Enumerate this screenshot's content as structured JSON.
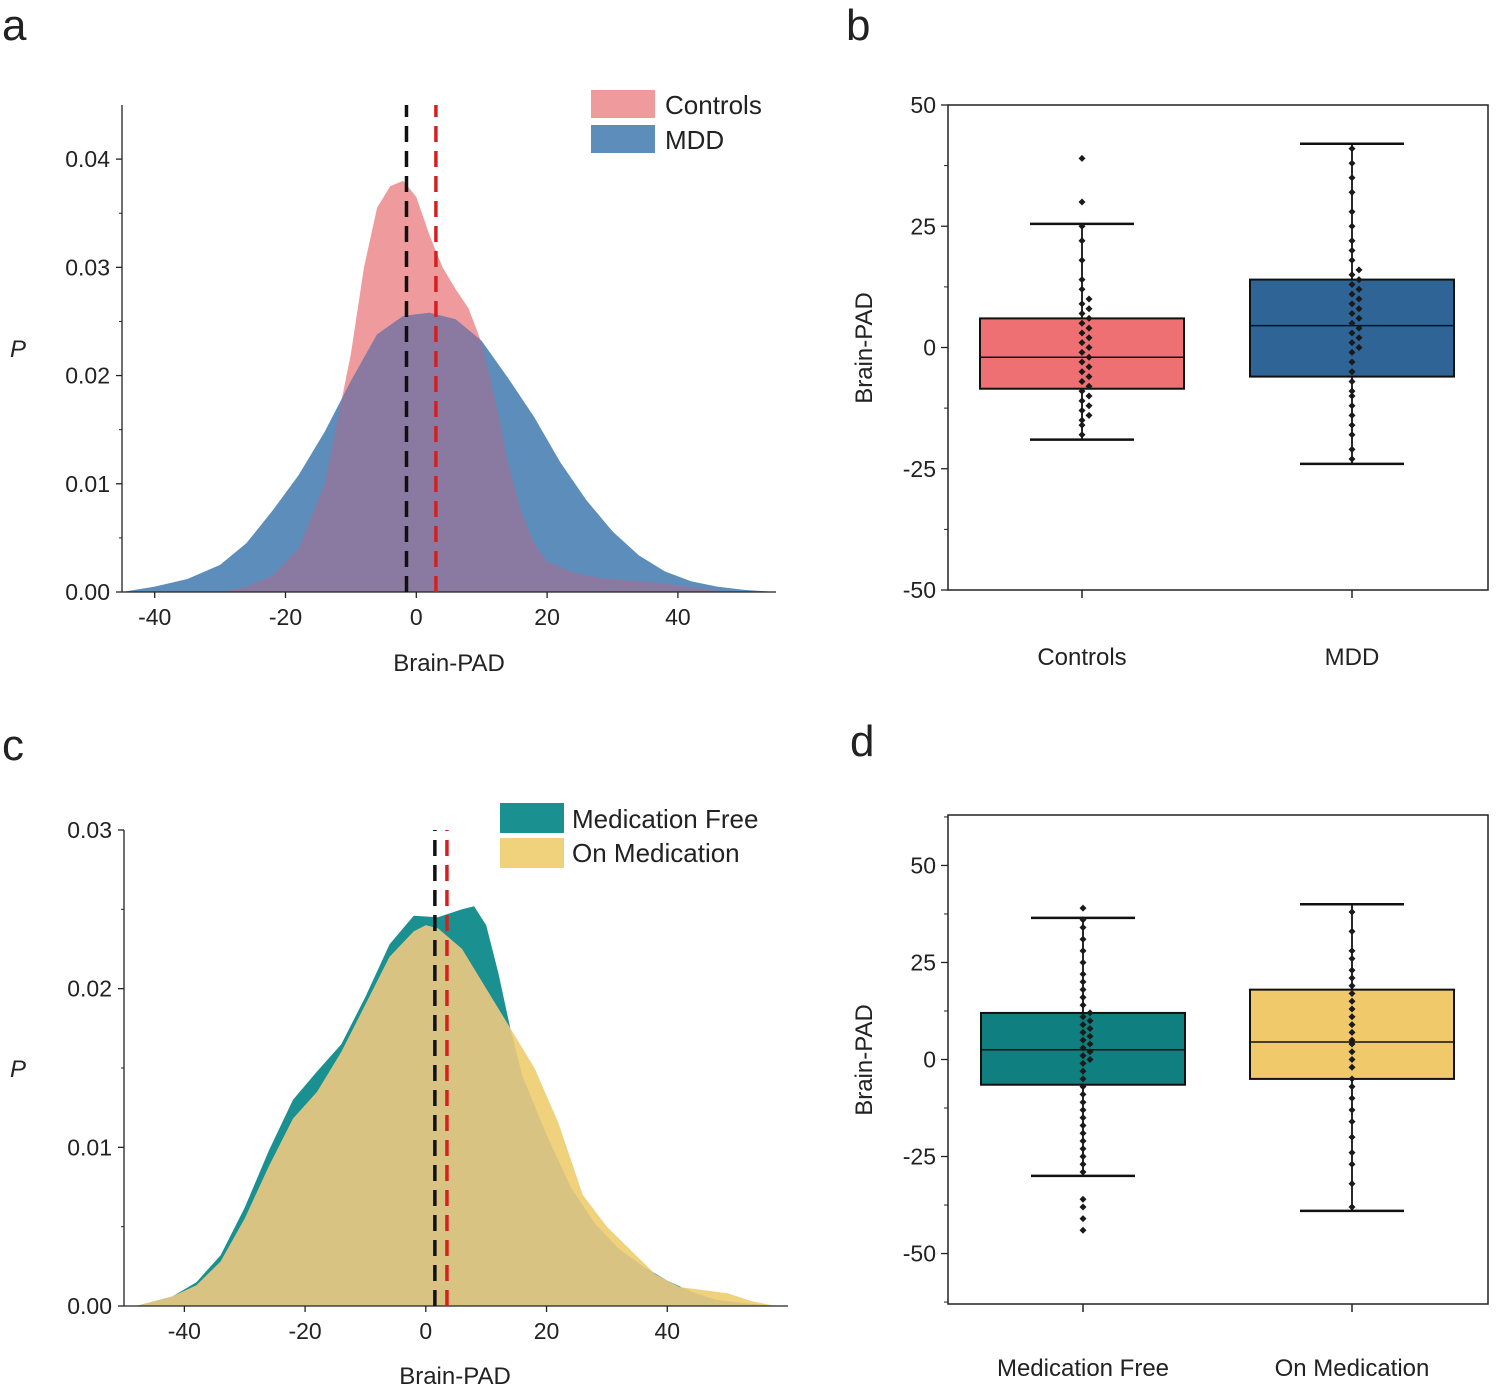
{
  "colors": {
    "controls": "#ef9a9c",
    "mdd": "#5d8dbb",
    "overlap_ab": "#8a7aa2",
    "medfree": "#1a9190",
    "onmed": "#f0d17c",
    "overlap_cd": "#d9c383",
    "box_controls": "#ee7073",
    "box_mdd": "#2f6497",
    "box_medfree": "#0f807f",
    "box_onmed": "#f0c96b",
    "mean_black": "#111111",
    "mean_red": "#d62020",
    "points": "#1a1a1a"
  },
  "chart_data": [
    {
      "id": "a",
      "type": "area",
      "panel_label": "a",
      "xlabel": "Brain-PAD",
      "ylabel": "P",
      "xlim": [
        -45,
        55
      ],
      "ylim": [
        0,
        0.045
      ],
      "xticks": [
        -40,
        -20,
        0,
        20,
        40
      ],
      "xtick_labels": [
        "-40",
        "-20",
        "0",
        "20",
        "40"
      ],
      "yticks": [
        0,
        0.01,
        0.02,
        0.03,
        0.04
      ],
      "ytick_labels": [
        "0.00",
        "0.01",
        "0.02",
        "0.03",
        "0.04"
      ],
      "legend": [
        {
          "label": "Controls",
          "color": "controls"
        },
        {
          "label": "MDD",
          "color": "mdd"
        }
      ],
      "legend_position": "top-right",
      "mean_lines": [
        {
          "group": "Controls",
          "x": -1.5,
          "color": "mean_black"
        },
        {
          "group": "MDD",
          "x": 3.0,
          "color": "mean_red"
        }
      ],
      "series": [
        {
          "name": "Controls",
          "color": "controls",
          "x": [
            -30,
            -26,
            -22,
            -18,
            -14,
            -10,
            -8,
            -6,
            -4,
            -2,
            0,
            2,
            4,
            6,
            8,
            10,
            12,
            14,
            16,
            18,
            20,
            24,
            28,
            32,
            36,
            40,
            44,
            48
          ],
          "y": [
            0.0,
            0.0005,
            0.0015,
            0.004,
            0.01,
            0.022,
            0.03,
            0.0355,
            0.0375,
            0.038,
            0.0365,
            0.033,
            0.03,
            0.028,
            0.0262,
            0.023,
            0.018,
            0.012,
            0.0075,
            0.0045,
            0.0028,
            0.0018,
            0.0013,
            0.0011,
            0.0009,
            0.0006,
            0.0003,
            0.0
          ]
        },
        {
          "name": "MDD",
          "color": "mdd",
          "x": [
            -45,
            -40,
            -35,
            -30,
            -26,
            -22,
            -18,
            -14,
            -10,
            -6,
            -2,
            2,
            6,
            10,
            14,
            18,
            22,
            26,
            30,
            34,
            38,
            42,
            46,
            50,
            55
          ],
          "y": [
            0.0,
            0.0005,
            0.0012,
            0.0025,
            0.0045,
            0.0075,
            0.0108,
            0.0148,
            0.0195,
            0.0238,
            0.0255,
            0.0258,
            0.0252,
            0.0232,
            0.0198,
            0.0162,
            0.012,
            0.0085,
            0.0056,
            0.0034,
            0.0019,
            0.001,
            0.0005,
            0.0002,
            0.0
          ]
        }
      ]
    },
    {
      "id": "b",
      "type": "box",
      "panel_label": "b",
      "ylabel": "Brain-PAD",
      "ylim": [
        -50,
        50
      ],
      "yticks": [
        -50,
        -25,
        0,
        25,
        50
      ],
      "ytick_labels": [
        "-50",
        "-25",
        "0",
        "25",
        "50"
      ],
      "categories": [
        "Controls",
        "MDD"
      ],
      "boxes": [
        {
          "name": "Controls",
          "color": "box_controls",
          "whisker_low": -19,
          "q1": -8.5,
          "median": -2,
          "q3": 6,
          "whisker_high": 25.5,
          "outliers": [
            30,
            39
          ],
          "points": [
            -18,
            -16,
            -15,
            -14,
            -13,
            -12,
            -11,
            -10,
            -9,
            -8,
            -7,
            -6,
            -5,
            -4,
            -3,
            -2,
            -1,
            0,
            1,
            2,
            3,
            4,
            5,
            6,
            7,
            8,
            9,
            10,
            12,
            14,
            18,
            22,
            25
          ]
        },
        {
          "name": "MDD",
          "color": "box_mdd",
          "whisker_low": -24,
          "q1": -6,
          "median": 4.5,
          "q3": 14,
          "whisker_high": 42,
          "outliers": [],
          "points": [
            -23,
            -21,
            -18,
            -16,
            -14,
            -12,
            -10,
            -9,
            -7,
            -5,
            -3,
            -1,
            0,
            1,
            2,
            3,
            4,
            5,
            6,
            7,
            8,
            9,
            10,
            11,
            12,
            13,
            14,
            15,
            16,
            18,
            20,
            22,
            25,
            28,
            32,
            35,
            38,
            41
          ]
        }
      ]
    },
    {
      "id": "c",
      "type": "area",
      "panel_label": "c",
      "xlabel": "Brain-PAD",
      "ylabel": "P",
      "xlim": [
        -50,
        60
      ],
      "ylim": [
        0,
        0.03
      ],
      "xticks": [
        -40,
        -20,
        0,
        20,
        40
      ],
      "xtick_labels": [
        "-40",
        "-20",
        "0",
        "20",
        "40"
      ],
      "yticks": [
        0,
        0.01,
        0.02,
        0.03
      ],
      "ytick_labels": [
        "0.00",
        "0.01",
        "0.02",
        "0.03"
      ],
      "legend": [
        {
          "label": "Medication Free",
          "color": "medfree"
        },
        {
          "label": "On Medication",
          "color": "onmed"
        }
      ],
      "legend_position": "top-right",
      "mean_lines": [
        {
          "group": "Medication Free",
          "x": 1.5,
          "color": "mean_black"
        },
        {
          "group": "On Medication",
          "x": 3.5,
          "color": "mean_red"
        }
      ],
      "series": [
        {
          "name": "Medication Free",
          "color": "medfree",
          "x": [
            -48,
            -42,
            -38,
            -34,
            -30,
            -26,
            -22,
            -18,
            -14,
            -10,
            -6,
            -2,
            2,
            6,
            8,
            10,
            12,
            14,
            16,
            20,
            24,
            28,
            32,
            36,
            40,
            44,
            48,
            52,
            58
          ],
          "y": [
            0.0,
            0.0006,
            0.0015,
            0.0032,
            0.0062,
            0.0098,
            0.013,
            0.0148,
            0.0165,
            0.0195,
            0.0228,
            0.0246,
            0.0245,
            0.025,
            0.0252,
            0.024,
            0.021,
            0.0175,
            0.0145,
            0.0108,
            0.0075,
            0.0052,
            0.0036,
            0.0025,
            0.0016,
            0.0009,
            0.0004,
            0.0002,
            0.0
          ]
        },
        {
          "name": "On Medication",
          "color": "onmed",
          "x": [
            -48,
            -42,
            -38,
            -34,
            -30,
            -26,
            -22,
            -18,
            -14,
            -10,
            -6,
            -2,
            0,
            2,
            6,
            10,
            14,
            18,
            22,
            26,
            30,
            34,
            38,
            42,
            46,
            50,
            54,
            58
          ],
          "y": [
            0.0,
            0.0006,
            0.0013,
            0.0028,
            0.0055,
            0.0088,
            0.0118,
            0.0135,
            0.016,
            0.019,
            0.022,
            0.0236,
            0.024,
            0.0238,
            0.0225,
            0.02,
            0.0175,
            0.015,
            0.0115,
            0.007,
            0.005,
            0.0035,
            0.002,
            0.0012,
            0.001,
            0.0008,
            0.0003,
            0.0
          ]
        }
      ]
    },
    {
      "id": "d",
      "type": "box",
      "panel_label": "d",
      "ylabel": "Brain-PAD",
      "ylim": [
        -63,
        63
      ],
      "yticks": [
        -50,
        -25,
        0,
        25,
        50
      ],
      "ytick_labels": [
        "-50",
        "-25",
        "0",
        "25",
        "50"
      ],
      "categories": [
        "Medication Free",
        "On Medication"
      ],
      "boxes": [
        {
          "name": "Medication Free",
          "color": "box_medfree",
          "whisker_low": -30,
          "q1": -6.5,
          "median": 2.5,
          "q3": 12,
          "whisker_high": 36.5,
          "outliers": [
            -36,
            -38,
            -41,
            -44,
            39
          ],
          "points": [
            -29,
            -27,
            -25,
            -23,
            -21,
            -19,
            -17,
            -15,
            -13,
            -11,
            -9,
            -7,
            -5,
            -3,
            -1,
            0,
            1,
            2,
            3,
            4,
            5,
            6,
            7,
            8,
            9,
            10,
            11,
            12,
            14,
            16,
            18,
            20,
            22,
            25,
            28,
            31,
            34,
            36
          ]
        },
        {
          "name": "On Medication",
          "color": "box_onmed",
          "whisker_low": -39,
          "q1": -5,
          "median": 4.5,
          "q3": 18,
          "whisker_high": 40,
          "outliers": [],
          "points": [
            -38,
            -32,
            -27,
            -24,
            -20,
            -16,
            -13,
            -10,
            -7,
            -5,
            -2,
            0,
            2,
            4,
            5,
            7,
            9,
            11,
            13,
            15,
            17,
            19,
            21,
            23,
            26,
            28,
            33,
            38
          ]
        }
      ]
    }
  ]
}
